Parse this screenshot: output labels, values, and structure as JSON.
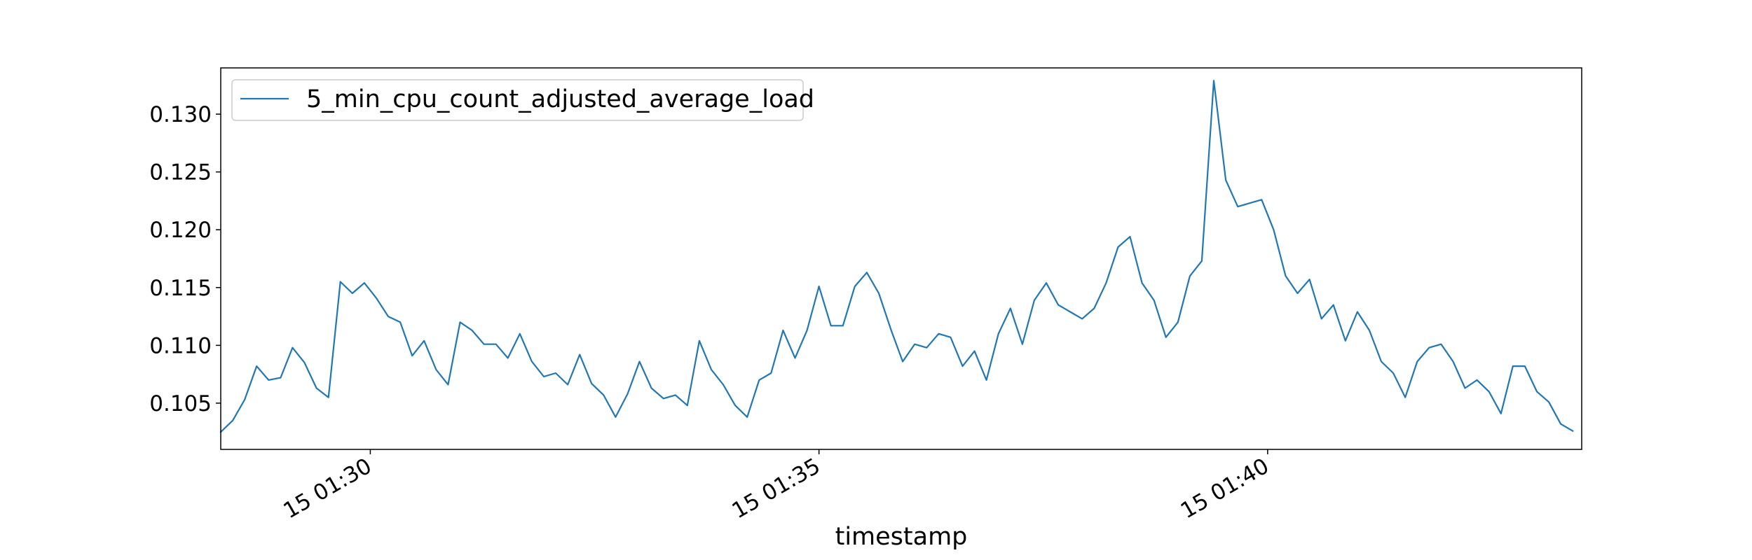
{
  "chart_data": {
    "type": "line",
    "title": "",
    "xlabel": "timestamp",
    "ylabel": "",
    "grid": false,
    "legend_position": "top-left",
    "xlim": [
      "01:28:20",
      "01:43:30"
    ],
    "ylim": [
      0.101,
      0.134
    ],
    "x_ticks": [
      {
        "time": "01:30:00",
        "label": "15 01:30"
      },
      {
        "time": "01:35:00",
        "label": "15 01:35"
      },
      {
        "time": "01:40:00",
        "label": "15 01:40"
      }
    ],
    "y_ticks": [
      {
        "value": 0.105,
        "label": "0.105"
      },
      {
        "value": 0.11,
        "label": "0.110"
      },
      {
        "value": 0.115,
        "label": "0.115"
      },
      {
        "value": 0.12,
        "label": "0.120"
      },
      {
        "value": 0.125,
        "label": "0.125"
      },
      {
        "value": 0.13,
        "label": "0.130"
      }
    ],
    "series": [
      {
        "name": "5_min_cpu_count_adjusted_average_load",
        "color": "#1f77b4",
        "x_start": "01:28:20",
        "x_step_seconds": 8,
        "values": [
          0.1025,
          0.1035,
          0.1053,
          0.1082,
          0.107,
          0.1072,
          0.1098,
          0.1085,
          0.1063,
          0.1055,
          0.1155,
          0.1145,
          0.1154,
          0.1141,
          0.1125,
          0.112,
          0.1091,
          0.1104,
          0.1079,
          0.1066,
          0.112,
          0.1113,
          0.1101,
          0.1101,
          0.1089,
          0.111,
          0.1086,
          0.1073,
          0.1076,
          0.1066,
          0.1092,
          0.1067,
          0.1057,
          0.1038,
          0.1058,
          0.1086,
          0.1063,
          0.1054,
          0.1057,
          0.1048,
          0.1104,
          0.1079,
          0.1066,
          0.1048,
          0.1038,
          0.107,
          0.1076,
          0.1113,
          0.1089,
          0.1113,
          0.1151,
          0.1117,
          0.1117,
          0.1151,
          0.1163,
          0.1145,
          0.1114,
          0.1086,
          0.1101,
          0.1098,
          0.111,
          0.1107,
          0.1082,
          0.1095,
          0.107,
          0.111,
          0.1132,
          0.1101,
          0.1139,
          0.1154,
          0.1135,
          0.1129,
          0.1123,
          0.1132,
          0.1154,
          0.1185,
          0.1194,
          0.1154,
          0.1139,
          0.1107,
          0.112,
          0.116,
          0.1173,
          0.1329,
          0.1243,
          0.122,
          0.1223,
          0.1226,
          0.12,
          0.116,
          0.1145,
          0.1157,
          0.1123,
          0.1135,
          0.1104,
          0.1129,
          0.1113,
          0.1086,
          0.1076,
          0.1055,
          0.1086,
          0.1098,
          0.1101,
          0.1086,
          0.1063,
          0.107,
          0.106,
          0.1041,
          0.1082,
          0.1082,
          0.106,
          0.1051,
          0.1032,
          0.1026
        ]
      }
    ]
  }
}
